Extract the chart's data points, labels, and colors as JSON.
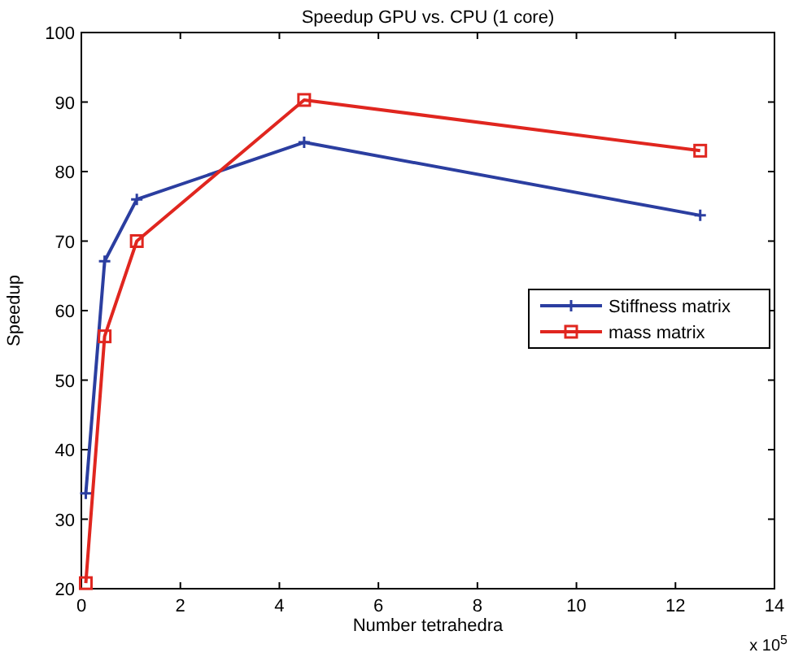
{
  "chart_data": {
    "type": "line",
    "title": "Speedup GPU vs. CPU (1 core)",
    "xlabel": "Number tetrahedra",
    "ylabel": "Speedup",
    "annotations": [
      "x 10$^{5}$"
    ],
    "x": [
      0.09,
      0.47,
      1.12,
      4.5,
      12.5
    ],
    "series": [
      {
        "name": "Stiffness matrix",
        "color": "#2b3ea0",
        "marker": "cross",
        "values": [
          33.7,
          67.1,
          76,
          84.2,
          73.7
        ]
      },
      {
        "name": "mass matrix",
        "color": "#e0261f",
        "marker": "square",
        "values": [
          20.8,
          56.3,
          70,
          90.3,
          83
        ]
      }
    ],
    "xlim": [
      0,
      14
    ],
    "xticks": [
      0,
      2,
      4,
      6,
      8,
      10,
      12,
      14
    ],
    "ylim": [
      20,
      100
    ],
    "yticks": [
      20,
      30,
      40,
      50,
      60,
      70,
      80,
      90,
      100
    ],
    "grid": false,
    "legend": "right",
    "line_style": "solid"
  }
}
